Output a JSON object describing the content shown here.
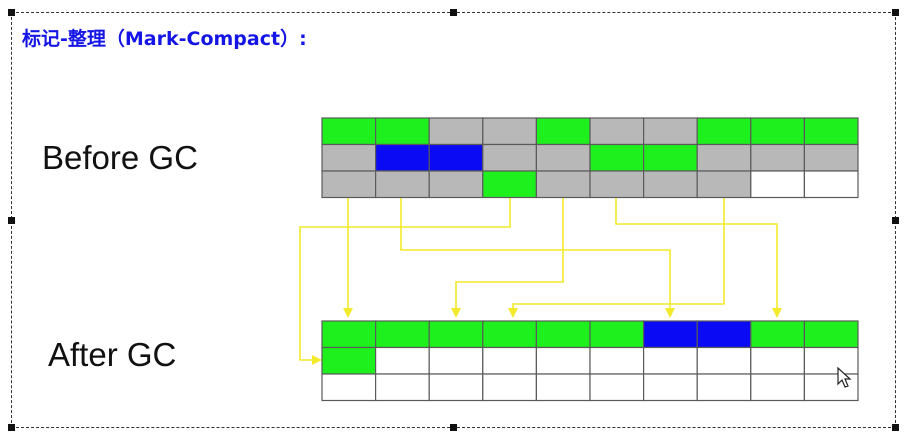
{
  "title": "标记-整理（Mark-Compact）:",
  "labels": {
    "before": "Before GC",
    "after": "After GC"
  },
  "colors": {
    "live": "#1ef01e",
    "live_large": "#0a0af5",
    "dead": "#b8b8b8",
    "free": "#ffffff",
    "arrow": "#f2ea2a",
    "title": "#1515e6"
  },
  "legend_values": [
    "live",
    "live_large",
    "dead",
    "free"
  ],
  "before_grid": [
    [
      "live",
      "live",
      "dead",
      "dead",
      "live",
      "dead",
      "dead",
      "live",
      "live",
      "live"
    ],
    [
      "dead",
      "live_large",
      "live_large",
      "dead",
      "dead",
      "live",
      "live",
      "dead",
      "dead",
      "dead"
    ],
    [
      "dead",
      "dead",
      "dead",
      "live",
      "dead",
      "dead",
      "dead",
      "dead",
      "free",
      "free"
    ]
  ],
  "after_grid": [
    [
      "live",
      "live",
      "live",
      "live",
      "live",
      "live",
      "live_large",
      "live_large",
      "live",
      "live"
    ],
    [
      "live",
      "free",
      "free",
      "free",
      "free",
      "free",
      "free",
      "free",
      "free",
      "free"
    ],
    [
      "free",
      "free",
      "free",
      "free",
      "free",
      "free",
      "free",
      "free",
      "free",
      "free"
    ]
  ],
  "moves": [
    {
      "from": [
        0,
        0
      ],
      "to": [
        0,
        0
      ]
    },
    {
      "from": [
        1,
        1
      ],
      "to": [
        0,
        2
      ]
    },
    {
      "from": [
        2,
        3
      ],
      "to": [
        1,
        0
      ]
    },
    {
      "from": [
        0,
        4
      ],
      "to": [
        0,
        3
      ]
    },
    {
      "from": [
        1,
        5
      ],
      "to": [
        0,
        6
      ]
    },
    {
      "from": [
        0,
        7
      ],
      "to": [
        0,
        8
      ]
    }
  ]
}
